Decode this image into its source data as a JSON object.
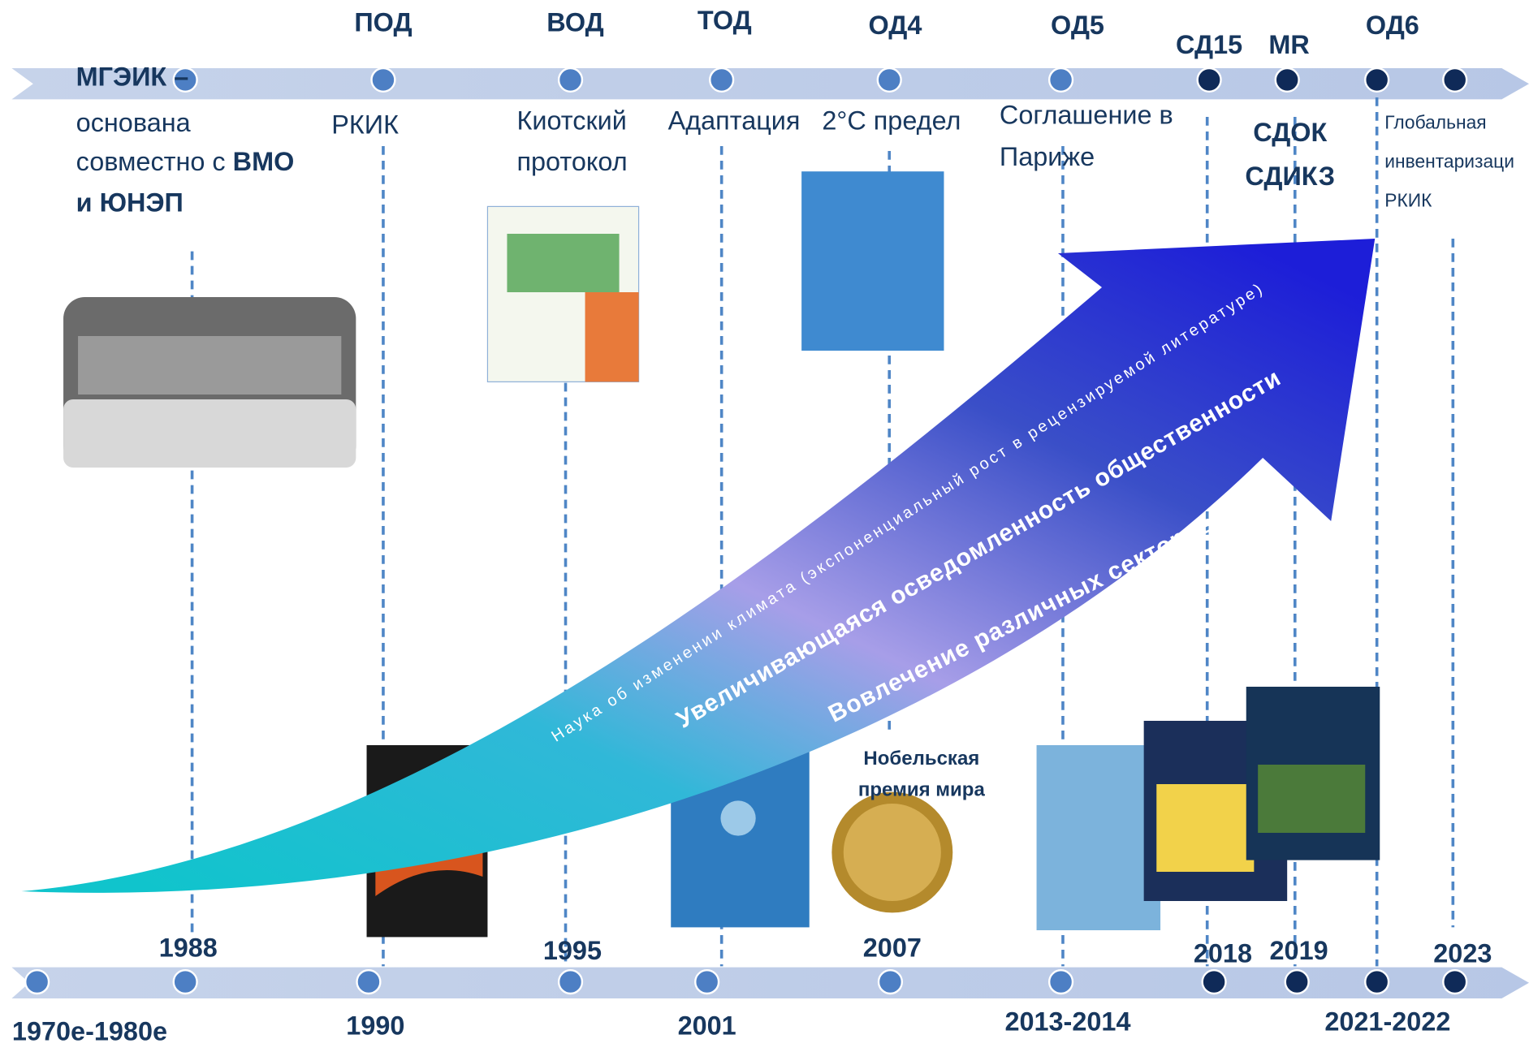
{
  "top_labels": [
    "ПОД",
    "ВОД",
    "ТОД",
    "ОД4",
    "ОД5",
    "СД15",
    "MR",
    "ОД6"
  ],
  "founding": {
    "title": "МГЭИК –",
    "line1": "основана",
    "line2": "совместно с",
    "line2_bold": "ВМО",
    "line3": "и ЮНЭП"
  },
  "notes": {
    "unfccc": "РКИК",
    "kyoto": [
      "Киотский",
      "протокол"
    ],
    "adaptation": "Адаптация",
    "limit": "2°C предел",
    "paris": [
      "Соглашение в",
      "Париже"
    ],
    "special": [
      "СДОК",
      "СДИКЗ"
    ],
    "stocktake": [
      "Глобальная",
      "инвентаризаци",
      "РКИК"
    ]
  },
  "years_top": [
    "1988",
    "1995",
    "2007",
    "2018",
    "2019",
    "2023"
  ],
  "years_bottom": [
    "1970е-1980е",
    "1990",
    "2001",
    "2013-2014",
    "2021-2022"
  ],
  "arrow_texts": [
    "Наука об изменении климата (экспоненциальный рост в рецензируемой литературе)",
    "Увеличивающаяся осведомленность общественности",
    "Вовлечение различных секторов"
  ],
  "nobel": [
    "Нобельская",
    "премия мира"
  ]
}
